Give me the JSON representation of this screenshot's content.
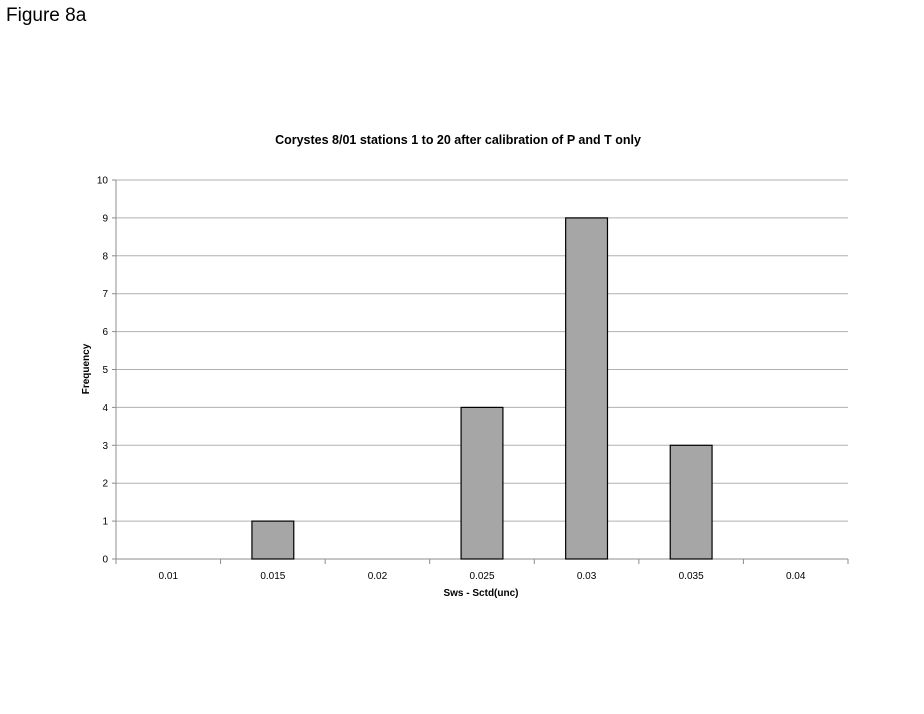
{
  "figure_label": "Figure 8a",
  "chart_data": {
    "type": "bar",
    "title": "Corystes 8/01 stations 1 to 20 after calibration of P and T only",
    "xlabel": "Sws - Sctd(unc)",
    "ylabel": "Frequency",
    "categories": [
      "0.01",
      "0.015",
      "0.02",
      "0.025",
      "0.03",
      "0.035",
      "0.04"
    ],
    "values": [
      0,
      1,
      0,
      4,
      9,
      3,
      0
    ],
    "ylim": [
      0,
      10
    ],
    "yticks": [
      "0",
      "1",
      "2",
      "3",
      "4",
      "5",
      "6",
      "7",
      "8",
      "9",
      "10"
    ],
    "grid": "horizontal",
    "legend": "none",
    "colors": {
      "bar_fill": "#a6a6a6",
      "bar_stroke": "#000000",
      "grid": "#b0b0b0",
      "axis": "#8c8c8c"
    }
  }
}
